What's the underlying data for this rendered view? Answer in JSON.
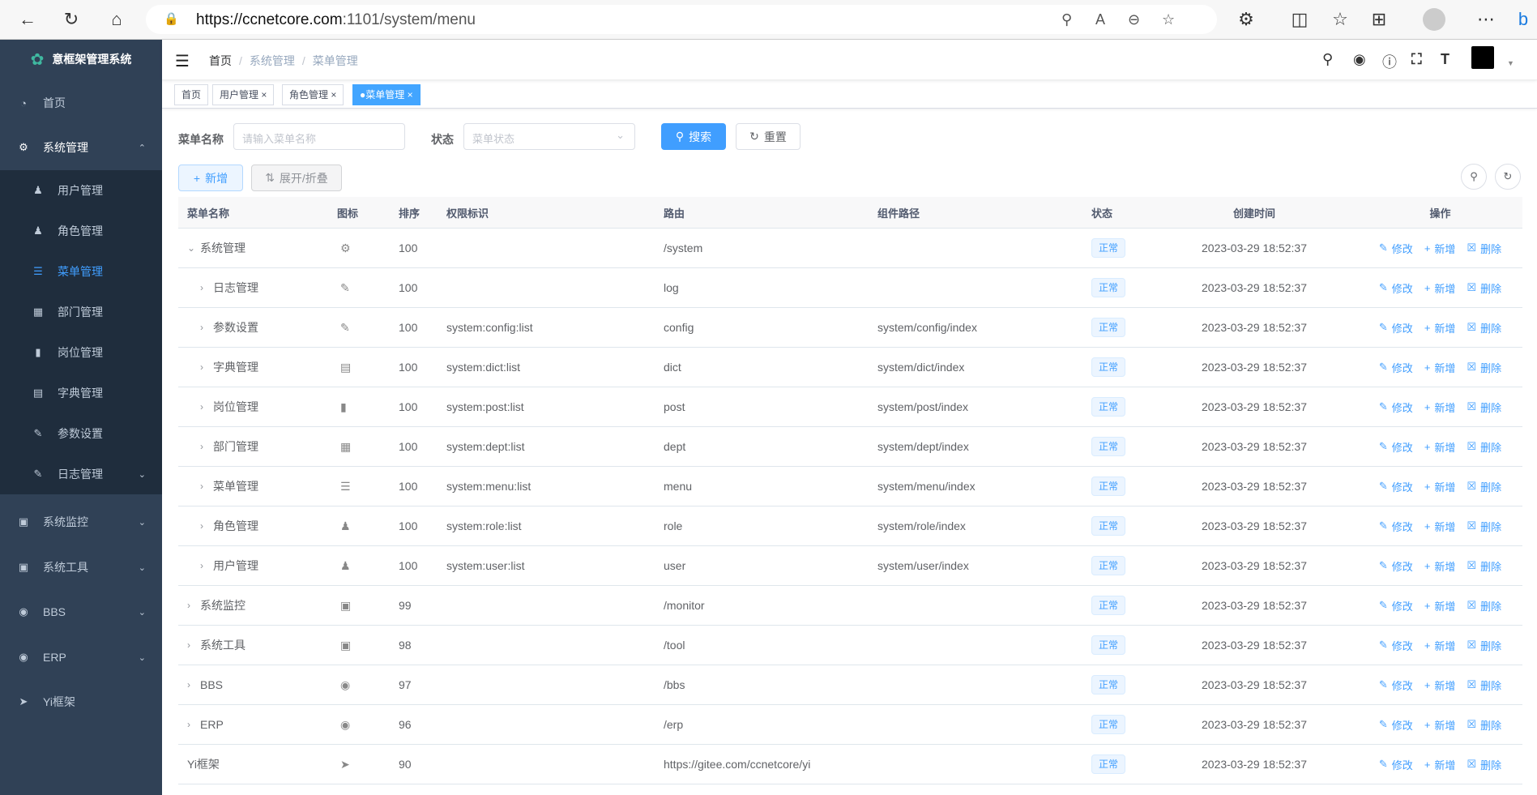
{
  "browser": {
    "url_host": "https://ccnetcore.com",
    "url_rest": ":1101/system/menu"
  },
  "sidebar": {
    "title": "意框架管理系统",
    "items": [
      {
        "label": "首页",
        "icon": "dashboard-icon"
      },
      {
        "label": "系统管理",
        "icon": "gear-icon",
        "expanded": true
      },
      {
        "label": "系统监控",
        "icon": "monitor-icon"
      },
      {
        "label": "系统工具",
        "icon": "toolbox-icon"
      },
      {
        "label": "BBS",
        "icon": "globe-icon"
      },
      {
        "label": "ERP",
        "icon": "globe-icon"
      },
      {
        "label": "Yi框架",
        "icon": "send-icon"
      }
    ],
    "sub_items": [
      {
        "label": "用户管理",
        "icon": "user-icon"
      },
      {
        "label": "角色管理",
        "icon": "peoples-icon"
      },
      {
        "label": "菜单管理",
        "icon": "tree-table-icon",
        "active": true
      },
      {
        "label": "部门管理",
        "icon": "tree-icon"
      },
      {
        "label": "岗位管理",
        "icon": "post-icon"
      },
      {
        "label": "字典管理",
        "icon": "dict-icon"
      },
      {
        "label": "参数设置",
        "icon": "edit-icon"
      },
      {
        "label": "日志管理",
        "icon": "log-icon"
      }
    ]
  },
  "header": {
    "breadcrumb": [
      "首页",
      "系统管理",
      "菜单管理"
    ]
  },
  "tags": [
    {
      "label": "首页"
    },
    {
      "label": "用户管理"
    },
    {
      "label": "角色管理"
    },
    {
      "label": "菜单管理",
      "active": true
    }
  ],
  "search": {
    "name_label": "菜单名称",
    "name_placeholder": "请输入菜单名称",
    "status_label": "状态",
    "status_placeholder": "菜单状态",
    "search_btn": "搜索",
    "reset_btn": "重置"
  },
  "toolbar": {
    "add_btn": "新增",
    "toggle_btn": "展开/折叠"
  },
  "table": {
    "headers": {
      "name": "菜单名称",
      "icon": "图标",
      "sort": "排序",
      "perms": "权限标识",
      "route": "路由",
      "comp": "组件路径",
      "status": "状态",
      "created": "创建时间",
      "ops": "操作"
    },
    "ops": {
      "edit": "修改",
      "add": "新增",
      "delete": "删除"
    },
    "rows": [
      {
        "name": "系统管理",
        "level": 0,
        "expand": "down",
        "icon": "gear-icon",
        "sort": "100",
        "perms": "",
        "route": "/system",
        "comp": "",
        "status": "正常",
        "created": "2023-03-29 18:52:37"
      },
      {
        "name": "日志管理",
        "level": 1,
        "expand": "right",
        "icon": "log-icon",
        "sort": "100",
        "perms": "",
        "route": "log",
        "comp": "",
        "status": "正常",
        "created": "2023-03-29 18:52:37"
      },
      {
        "name": "参数设置",
        "level": 1,
        "expand": "right",
        "icon": "edit-icon",
        "sort": "100",
        "perms": "system:config:list",
        "route": "config",
        "comp": "system/config/index",
        "status": "正常",
        "created": "2023-03-29 18:52:37"
      },
      {
        "name": "字典管理",
        "level": 1,
        "expand": "right",
        "icon": "dict-icon",
        "sort": "100",
        "perms": "system:dict:list",
        "route": "dict",
        "comp": "system/dict/index",
        "status": "正常",
        "created": "2023-03-29 18:52:37"
      },
      {
        "name": "岗位管理",
        "level": 1,
        "expand": "right",
        "icon": "post-icon",
        "sort": "100",
        "perms": "system:post:list",
        "route": "post",
        "comp": "system/post/index",
        "status": "正常",
        "created": "2023-03-29 18:52:37"
      },
      {
        "name": "部门管理",
        "level": 1,
        "expand": "right",
        "icon": "tree-icon",
        "sort": "100",
        "perms": "system:dept:list",
        "route": "dept",
        "comp": "system/dept/index",
        "status": "正常",
        "created": "2023-03-29 18:52:37"
      },
      {
        "name": "菜单管理",
        "level": 1,
        "expand": "right",
        "icon": "tree-table-icon",
        "sort": "100",
        "perms": "system:menu:list",
        "route": "menu",
        "comp": "system/menu/index",
        "status": "正常",
        "created": "2023-03-29 18:52:37"
      },
      {
        "name": "角色管理",
        "level": 1,
        "expand": "right",
        "icon": "peoples-icon",
        "sort": "100",
        "perms": "system:role:list",
        "route": "role",
        "comp": "system/role/index",
        "status": "正常",
        "created": "2023-03-29 18:52:37"
      },
      {
        "name": "用户管理",
        "level": 1,
        "expand": "right",
        "icon": "user-icon",
        "sort": "100",
        "perms": "system:user:list",
        "route": "user",
        "comp": "system/user/index",
        "status": "正常",
        "created": "2023-03-29 18:52:37"
      },
      {
        "name": "系统监控",
        "level": 0,
        "expand": "right",
        "icon": "monitor-icon",
        "sort": "99",
        "perms": "",
        "route": "/monitor",
        "comp": "",
        "status": "正常",
        "created": "2023-03-29 18:52:37"
      },
      {
        "name": "系统工具",
        "level": 0,
        "expand": "right",
        "icon": "toolbox-icon",
        "sort": "98",
        "perms": "",
        "route": "/tool",
        "comp": "",
        "status": "正常",
        "created": "2023-03-29 18:52:37"
      },
      {
        "name": "BBS",
        "level": 0,
        "expand": "right",
        "icon": "globe-icon",
        "sort": "97",
        "perms": "",
        "route": "/bbs",
        "comp": "",
        "status": "正常",
        "created": "2023-03-29 18:52:37"
      },
      {
        "name": "ERP",
        "level": 0,
        "expand": "right",
        "icon": "globe-icon",
        "sort": "96",
        "perms": "",
        "route": "/erp",
        "comp": "",
        "status": "正常",
        "created": "2023-03-29 18:52:37"
      },
      {
        "name": "Yi框架",
        "level": 0,
        "expand": "",
        "icon": "send-icon",
        "sort": "90",
        "perms": "",
        "route": "https://gitee.com/ccnetcore/yi",
        "comp": "",
        "status": "正常",
        "created": "2023-03-29 18:52:37"
      }
    ]
  },
  "colors": {
    "sidebar": "#304156",
    "submenu": "#1f2d3d",
    "primary": "#409eff"
  }
}
